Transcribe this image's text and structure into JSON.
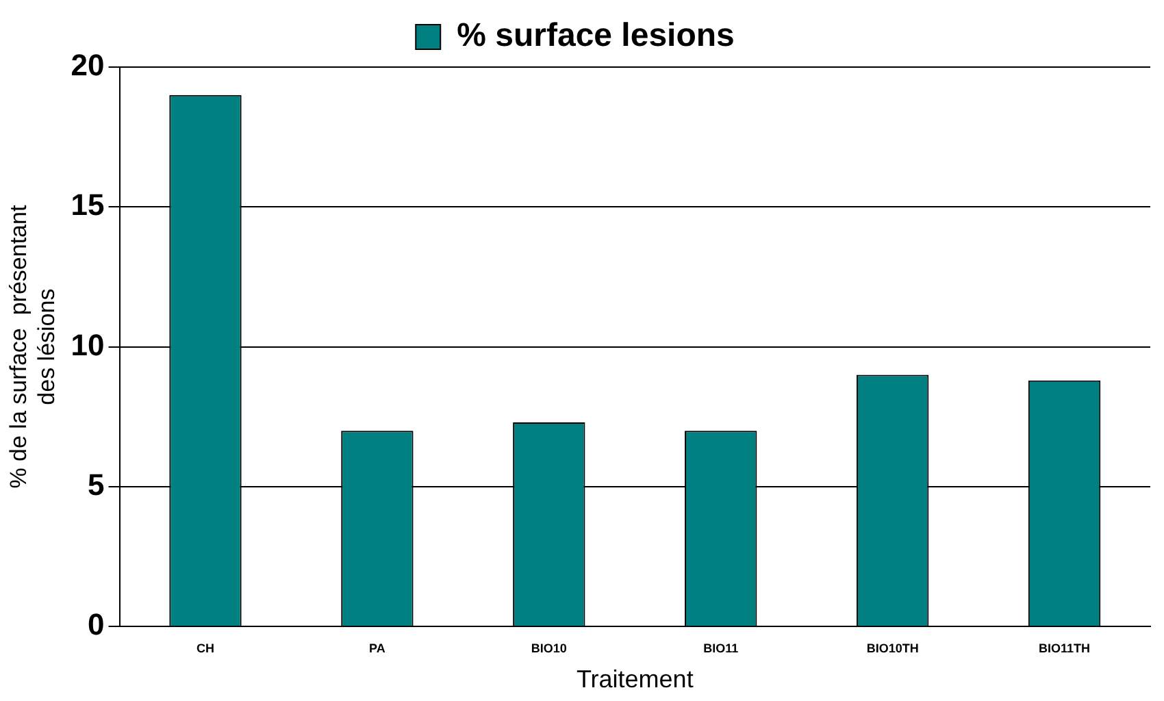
{
  "chart_data": {
    "type": "bar",
    "xlabel": "Traitement",
    "ylabel": "% de la surface  présentant\ndes lésions",
    "categories": [
      "CH",
      "PA",
      "BIO10",
      "BIO11",
      "BIO10TH",
      "BIO11TH"
    ],
    "series": [
      {
        "name": "% surface lesions",
        "color": "#008080",
        "values": [
          19,
          7,
          7.3,
          7,
          9,
          8.8
        ]
      }
    ],
    "ylim": [
      0,
      20
    ],
    "yticks": [
      0,
      5,
      10,
      15,
      20
    ],
    "grid": "y",
    "legend": "top"
  }
}
